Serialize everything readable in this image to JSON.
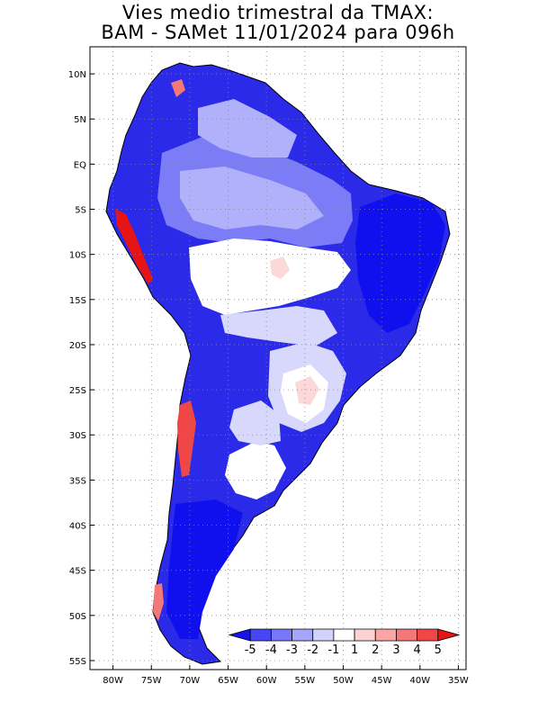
{
  "title": {
    "line1": "Vies medio trimestral da TMAX:",
    "line2": "BAM - SAMet 11/01/2024  para 096h"
  },
  "map": {
    "lat_ticks": [
      "10N",
      "5N",
      "EQ",
      "5S",
      "10S",
      "15S",
      "20S",
      "25S",
      "30S",
      "35S",
      "40S",
      "45S",
      "50S",
      "55S"
    ],
    "lon_ticks": [
      "80W",
      "75W",
      "70W",
      "65W",
      "60W",
      "55W",
      "50W",
      "45W",
      "40W",
      "35W"
    ],
    "lon_range": [
      -83,
      -34
    ],
    "lat_range": [
      -56,
      13
    ],
    "grid": true
  },
  "colorbar": {
    "labels": [
      "-5",
      "-4",
      "-3",
      "-2",
      "-1",
      "1",
      "2",
      "3",
      "4",
      "5"
    ],
    "colors": [
      "#1414f0",
      "#4646f5",
      "#7878f8",
      "#a5a5fb",
      "#d2d2fd",
      "#ffffff",
      "#fdd2d2",
      "#fba5a5",
      "#f57878",
      "#f04646",
      "#e61414"
    ]
  }
}
